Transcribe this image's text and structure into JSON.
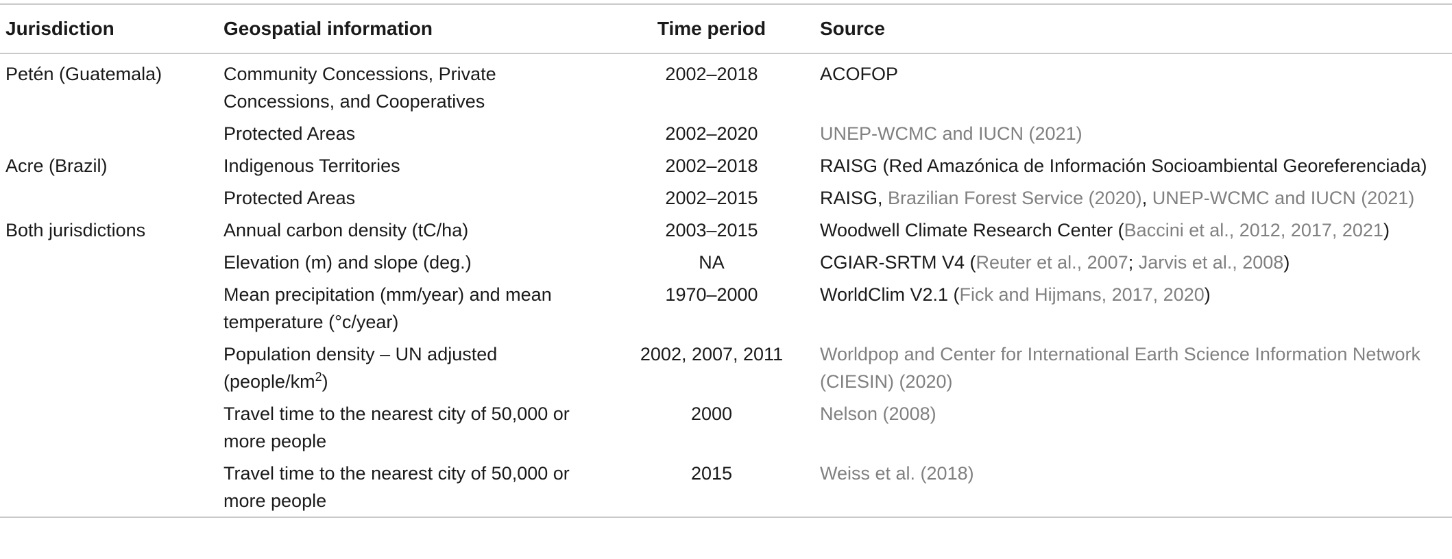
{
  "header": {
    "jurisdiction": "Jurisdiction",
    "geospatial": "Geospatial information",
    "time_period": "Time period",
    "source": "Source"
  },
  "rows": [
    {
      "jurisdiction": "Petén (Guatemala)",
      "geo": "Community Concessions, Private Concessions, and Cooperatives",
      "time": "2002–2018",
      "source": [
        "ACOFOP"
      ]
    },
    {
      "jurisdiction": "",
      "geo": "Protected Areas",
      "time": "2002–2020",
      "source": [
        "UNEP-WCMC and IUCN (2021)"
      ]
    },
    {
      "jurisdiction": "Acre (Brazil)",
      "geo": "Indigenous Territories",
      "time": "2002–2018",
      "source": [
        "RAISG (Red Amazónica de Información Socioambiental Georeferenciada)"
      ]
    },
    {
      "jurisdiction": "",
      "geo": "Protected Areas",
      "time": "2002–2015",
      "source": [
        "RAISG, ",
        "Brazilian Forest Service (2020)",
        ", ",
        "UNEP-WCMC and IUCN (2021)"
      ]
    },
    {
      "jurisdiction": "Both jurisdictions",
      "geo": "Annual carbon density (tC/ha)",
      "time": "2003–2015",
      "source": [
        "Woodwell Climate Research Center (",
        "Baccini et al., 2012, 2017, 2021",
        ")"
      ]
    },
    {
      "jurisdiction": "",
      "geo": "Elevation (m) and slope (deg.)",
      "time": "NA",
      "source": [
        "CGIAR-SRTM V4 (",
        "Reuter et al., 2007",
        "; ",
        "Jarvis et al., 2008",
        ")"
      ]
    },
    {
      "jurisdiction": "",
      "geo": "Mean precipitation (mm/year) and mean temperature (°c/year)",
      "time": "1970–2000",
      "source": [
        "WorldClim V2.1 (",
        "Fick and Hijmans, 2017, 2020",
        ")"
      ]
    },
    {
      "jurisdiction": "",
      "geo": "Population density – UN adjusted (people/km",
      "geo_sup": "2",
      "geo_after": ")",
      "time": "2002, 2007, 2011",
      "source": [
        "Worldpop and Center for International Earth Science Information Network (CIESIN) (2020)"
      ]
    },
    {
      "jurisdiction": "",
      "geo": "Travel time to the nearest city of 50,000 or more people",
      "time": "2000",
      "source": [
        "Nelson (2008)"
      ]
    },
    {
      "jurisdiction": "",
      "geo": "Travel time to the nearest city of 50,000 or more people",
      "time": "2015",
      "source": [
        "Weiss et al. (2018)"
      ]
    }
  ]
}
